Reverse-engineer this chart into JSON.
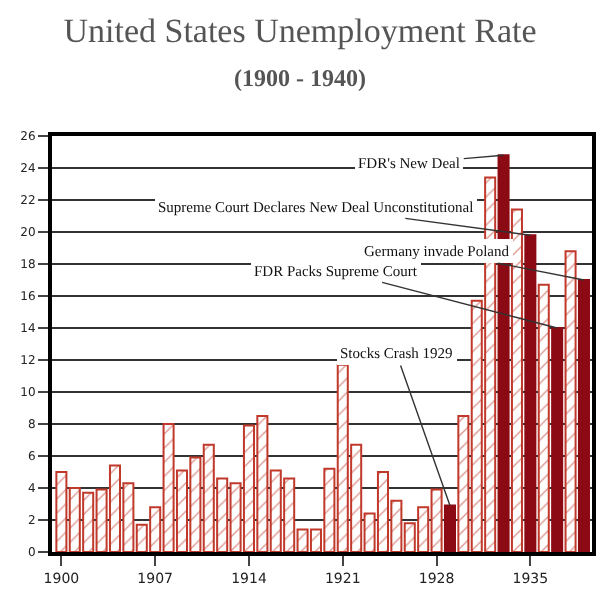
{
  "chart_data": {
    "type": "bar",
    "title": "United States Unemployment Rate",
    "subtitle": "(1900 - 1940)",
    "series": [
      {
        "color": "#c0392b",
        "x": [
          1900,
          1901,
          1902,
          1903,
          1904,
          1905,
          1906,
          1907,
          1908,
          1909,
          1910,
          1911,
          1912,
          1913,
          1914,
          1915,
          1916,
          1917,
          1918,
          1919,
          1920,
          1921,
          1922,
          1923,
          1924,
          1925,
          1926,
          1927,
          1928,
          1930,
          1931,
          1932,
          1934,
          1936,
          1938
        ],
        "values": [
          5.0,
          4.0,
          3.7,
          3.9,
          5.4,
          4.3,
          1.7,
          2.8,
          8.0,
          5.1,
          5.9,
          6.7,
          4.6,
          4.3,
          7.9,
          8.5,
          5.1,
          4.6,
          1.4,
          1.4,
          5.2,
          11.7,
          6.7,
          2.4,
          5.0,
          3.2,
          1.8,
          2.8,
          3.9,
          8.5,
          15.7,
          23.4,
          21.4,
          16.7,
          18.8
        ]
      },
      {
        "color": "#8b0a14",
        "x": [
          1929,
          1933,
          1935,
          1937,
          1939
        ],
        "values": [
          2.9,
          24.8,
          19.8,
          14.0,
          17.0
        ]
      }
    ],
    "xlim": [
      1899.3,
      1939.6
    ],
    "xticks": [
      1900,
      1907,
      1914,
      1921,
      1928,
      1935
    ],
    "ylim": [
      0,
      26
    ],
    "yticks": [
      0,
      2,
      4,
      6,
      8,
      10,
      12,
      14,
      16,
      18,
      20,
      22,
      24,
      26
    ],
    "grid": "y",
    "annotations": [
      {
        "text": "FDR's New Deal",
        "x": 1933,
        "y": 24.8
      },
      {
        "text": "Supreme Court Declares New Deal Unconstitutional",
        "x": 1935,
        "y": 19.8
      },
      {
        "text": "Germany invade Poland",
        "x": 1939,
        "y": 17.0
      },
      {
        "text": "FDR Packs Supreme Court",
        "x": 1937,
        "y": 14.0
      },
      {
        "text": "Stocks Crash 1929",
        "x": 1929,
        "y": 2.9
      }
    ]
  }
}
